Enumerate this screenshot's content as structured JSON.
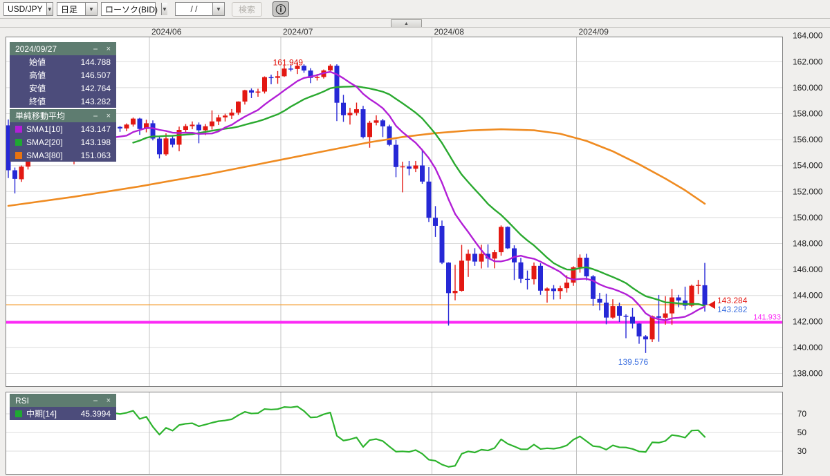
{
  "toolbar": {
    "pair": "USD/JPY",
    "timeframe": "日足",
    "chart_type": "ローソク(BID)",
    "date_placeholder": "  /  /",
    "search_label": "検索",
    "info_icon": "ⓘ",
    "dropdown_arrow": "▼"
  },
  "collapse_button": "▲",
  "panel_controls": {
    "minimize": "−",
    "close": "×"
  },
  "price_panel": {
    "title": "2024/09/27",
    "rows": [
      {
        "label": "始値",
        "value": "144.788"
      },
      {
        "label": "高値",
        "value": "146.507"
      },
      {
        "label": "安値",
        "value": "142.764"
      },
      {
        "label": "終値",
        "value": "143.282"
      }
    ]
  },
  "sma_panel": {
    "title": "単純移動平均",
    "rows": [
      {
        "label": "SMA1[10]",
        "value": "143.147",
        "color": "#b21fd6"
      },
      {
        "label": "SMA2[20]",
        "value": "143.198",
        "color": "#1fa832"
      },
      {
        "label": "SMA3[80]",
        "value": "151.063",
        "color": "#e87311"
      }
    ]
  },
  "rsi_panel": {
    "title": "RSI",
    "rows": [
      {
        "label": "中期[14]",
        "value": "45.3994",
        "color": "#1fa832"
      }
    ]
  },
  "chart_data": {
    "type": "candlestick",
    "title": "USD/JPY 日足 ローソク(BID)",
    "y_axis": {
      "min": 138,
      "max": 164,
      "step": 2,
      "decimals": 3
    },
    "x_months": [
      {
        "label": "2024/06",
        "index": 22
      },
      {
        "label": "2024/07",
        "index": 42
      },
      {
        "label": "2024/08",
        "index": 65
      },
      {
        "label": "2024/09",
        "index": 87
      }
    ],
    "colors": {
      "up": "#e31812",
      "down": "#2628d6",
      "sma1": "#b21fd6",
      "sma2": "#2aa92f",
      "sma3": "#ef8b21",
      "rsi": "#2db32d",
      "grid": "#dcdcdc",
      "grid_vert": "#c3c3c3",
      "tick_text": "#1a1a1a"
    },
    "candles": [
      [
        157.1,
        157.55,
        153.04,
        153.64
      ],
      [
        153.64,
        153.85,
        151.86,
        152.98
      ],
      [
        152.95,
        154.01,
        152.75,
        153.92
      ],
      [
        153.92,
        154.9,
        153.7,
        154.7
      ],
      [
        154.7,
        155.69,
        154.55,
        155.51
      ],
      [
        155.51,
        155.75,
        155.15,
        155.48
      ],
      [
        155.48,
        155.95,
        155.28,
        155.78
      ],
      [
        155.78,
        156.35,
        155.55,
        156.21
      ],
      [
        156.21,
        156.57,
        155.95,
        156.42
      ],
      [
        156.42,
        156.55,
        154.62,
        154.88
      ],
      [
        154.88,
        155.51,
        154.1,
        155.28
      ],
      [
        155.28,
        155.8,
        155.1,
        155.65
      ],
      [
        155.65,
        156.33,
        155.5,
        156.25
      ],
      [
        156.25,
        156.55,
        155.85,
        156.18
      ],
      [
        156.18,
        156.95,
        156.05,
        156.91
      ],
      [
        156.91,
        157.2,
        156.56,
        156.94
      ],
      [
        156.94,
        157.15,
        156.7,
        156.98
      ],
      [
        156.98,
        157.05,
        156.6,
        156.86
      ],
      [
        156.86,
        157.25,
        156.65,
        157.16
      ],
      [
        157.16,
        157.7,
        157.0,
        157.62
      ],
      [
        157.62,
        157.68,
        156.37,
        156.82
      ],
      [
        156.82,
        157.53,
        156.56,
        157.26
      ],
      [
        157.26,
        157.48,
        155.94,
        156.08
      ],
      [
        156.08,
        156.27,
        154.55,
        154.87
      ],
      [
        154.87,
        156.48,
        154.75,
        156.09
      ],
      [
        156.09,
        156.3,
        155.4,
        155.61
      ],
      [
        155.61,
        157.0,
        155.1,
        156.75
      ],
      [
        156.75,
        157.2,
        156.55,
        157.04
      ],
      [
        157.04,
        157.4,
        156.8,
        157.15
      ],
      [
        157.15,
        157.32,
        155.72,
        156.72
      ],
      [
        156.72,
        157.2,
        156.35,
        157.03
      ],
      [
        157.03,
        158.25,
        156.77,
        157.4
      ],
      [
        157.4,
        157.92,
        157.12,
        157.71
      ],
      [
        157.71,
        158.0,
        157.4,
        157.85
      ],
      [
        157.85,
        158.35,
        157.6,
        158.08
      ],
      [
        158.08,
        158.95,
        157.9,
        158.93
      ],
      [
        158.93,
        159.84,
        158.7,
        159.8
      ],
      [
        159.8,
        159.94,
        159.2,
        159.62
      ],
      [
        159.62,
        159.92,
        159.3,
        159.7
      ],
      [
        159.7,
        160.87,
        159.55,
        160.81
      ],
      [
        160.81,
        161.0,
        160.26,
        160.76
      ],
      [
        160.76,
        161.28,
        160.3,
        160.88
      ],
      [
        160.88,
        161.72,
        160.83,
        161.47
      ],
      [
        161.47,
        161.74,
        161.25,
        161.44
      ],
      [
        161.44,
        161.949,
        161.05,
        161.69
      ],
      [
        161.69,
        161.8,
        161.15,
        161.32
      ],
      [
        161.32,
        161.5,
        160.35,
        160.75
      ],
      [
        160.75,
        161.05,
        160.55,
        160.82
      ],
      [
        160.82,
        161.4,
        160.7,
        161.33
      ],
      [
        161.33,
        161.8,
        161.2,
        161.69
      ],
      [
        161.69,
        161.8,
        157.43,
        158.84
      ],
      [
        158.84,
        159.45,
        157.37,
        157.88
      ],
      [
        157.88,
        158.45,
        157.16,
        158.06
      ],
      [
        158.06,
        158.85,
        157.85,
        158.34
      ],
      [
        158.34,
        158.6,
        156.09,
        156.2
      ],
      [
        156.2,
        157.45,
        155.38,
        157.3
      ],
      [
        157.3,
        157.87,
        157.1,
        157.48
      ],
      [
        157.48,
        157.6,
        156.2,
        157.02
      ],
      [
        157.02,
        157.15,
        155.5,
        155.6
      ],
      [
        155.6,
        155.99,
        153.11,
        153.89
      ],
      [
        153.89,
        154.3,
        151.94,
        153.94
      ],
      [
        153.94,
        154.36,
        153.25,
        153.76
      ],
      [
        153.76,
        154.36,
        153.5,
        154.01
      ],
      [
        154.01,
        155.22,
        152.6,
        152.77
      ],
      [
        152.77,
        153.88,
        149.66,
        149.98
      ],
      [
        149.98,
        150.88,
        148.51,
        149.36
      ],
      [
        149.36,
        149.77,
        146.42,
        146.53
      ],
      [
        146.53,
        146.56,
        141.68,
        144.18
      ],
      [
        144.18,
        146.36,
        143.63,
        144.36
      ],
      [
        144.36,
        147.9,
        144.3,
        146.68
      ],
      [
        146.68,
        147.53,
        145.43,
        147.21
      ],
      [
        147.21,
        147.64,
        146.28,
        146.61
      ],
      [
        146.61,
        147.91,
        146.08,
        147.21
      ],
      [
        147.21,
        147.94,
        146.15,
        146.84
      ],
      [
        146.84,
        147.5,
        146.09,
        147.33
      ],
      [
        147.33,
        149.39,
        147.06,
        149.28
      ],
      [
        149.28,
        149.32,
        147.58,
        147.63
      ],
      [
        147.63,
        147.86,
        145.19,
        146.55
      ],
      [
        146.55,
        146.9,
        144.96,
        145.28
      ],
      [
        145.28,
        145.92,
        144.46,
        145.25
      ],
      [
        145.25,
        146.54,
        144.85,
        146.28
      ],
      [
        146.28,
        146.48,
        144.05,
        144.37
      ],
      [
        144.37,
        144.62,
        143.45,
        144.54
      ],
      [
        144.54,
        144.8,
        143.69,
        144.34
      ],
      [
        144.34,
        144.75,
        143.71,
        144.56
      ],
      [
        144.56,
        145.55,
        144.22,
        144.99
      ],
      [
        144.99,
        146.25,
        144.74,
        146.17
      ],
      [
        146.17,
        147.16,
        145.76,
        146.91
      ],
      [
        146.91,
        147.21,
        145.16,
        145.47
      ],
      [
        145.47,
        145.57,
        143.2,
        143.73
      ],
      [
        143.73,
        144.2,
        142.85,
        143.45
      ],
      [
        143.45,
        144.13,
        141.78,
        142.3
      ],
      [
        142.3,
        143.71,
        142.2,
        143.18
      ],
      [
        143.18,
        143.45,
        141.96,
        142.44
      ],
      [
        142.44,
        142.55,
        140.71,
        142.36
      ],
      [
        142.36,
        143.04,
        141.46,
        141.83
      ],
      [
        141.83,
        141.87,
        140.28,
        140.85
      ],
      [
        140.85,
        140.95,
        139.576,
        140.62
      ],
      [
        140.62,
        142.46,
        140.42,
        142.4
      ],
      [
        142.4,
        144.04,
        140.44,
        142.29
      ],
      [
        142.29,
        143.95,
        141.75,
        142.62
      ],
      [
        142.62,
        144.5,
        141.74,
        143.85
      ],
      [
        143.85,
        144.05,
        143.1,
        143.61
      ],
      [
        143.61,
        144.68,
        142.9,
        143.21
      ],
      [
        143.21,
        144.84,
        143.1,
        144.75
      ],
      [
        144.75,
        145.2,
        144.1,
        144.81
      ],
      [
        144.788,
        146.507,
        142.764,
        143.282
      ]
    ],
    "overlays": {
      "sma1": {
        "period": 10,
        "color": "#b21fd6",
        "last": 143.147
      },
      "sma2": {
        "period": 20,
        "color": "#2aa92f",
        "last": 143.198
      },
      "sma3": {
        "color": "#ef8b21",
        "last": 151.063,
        "points": [
          [
            0,
            150.9
          ],
          [
            10,
            151.6
          ],
          [
            20,
            152.4
          ],
          [
            30,
            153.3
          ],
          [
            40,
            154.3
          ],
          [
            48,
            155.1
          ],
          [
            55,
            155.8
          ],
          [
            60,
            156.2
          ],
          [
            65,
            156.5
          ],
          [
            70,
            156.7
          ],
          [
            75,
            156.8
          ],
          [
            80,
            156.72
          ],
          [
            84,
            156.45
          ],
          [
            88,
            155.9
          ],
          [
            92,
            155.1
          ],
          [
            96,
            154.1
          ],
          [
            100,
            153.0
          ],
          [
            103,
            152.1
          ],
          [
            106,
            151.063
          ]
        ]
      }
    },
    "rsi": {
      "period": 14,
      "color": "#2db32d",
      "ticks": [
        70,
        50,
        30
      ],
      "last": 45.3994
    },
    "annotations": {
      "high_marker": {
        "text": "161.949",
        "index": 44,
        "price": 161.949,
        "color": "#e31812"
      },
      "low_marker": {
        "text": "139.576",
        "index": 97,
        "price": 139.576,
        "color": "#3b6fe0"
      },
      "ask_tag": {
        "text": "143.284",
        "color": "#e31812"
      },
      "bid_tag": {
        "text": "143.282",
        "color": "#3b6fe0"
      },
      "tag_price": 143.282,
      "hlines": [
        {
          "price": 143.282,
          "color": "#f4a33c",
          "width": 1.3,
          "partial": true
        },
        {
          "price": 141.933,
          "color": "#fb2af5",
          "width": 4,
          "label": "141.933"
        }
      ]
    }
  }
}
